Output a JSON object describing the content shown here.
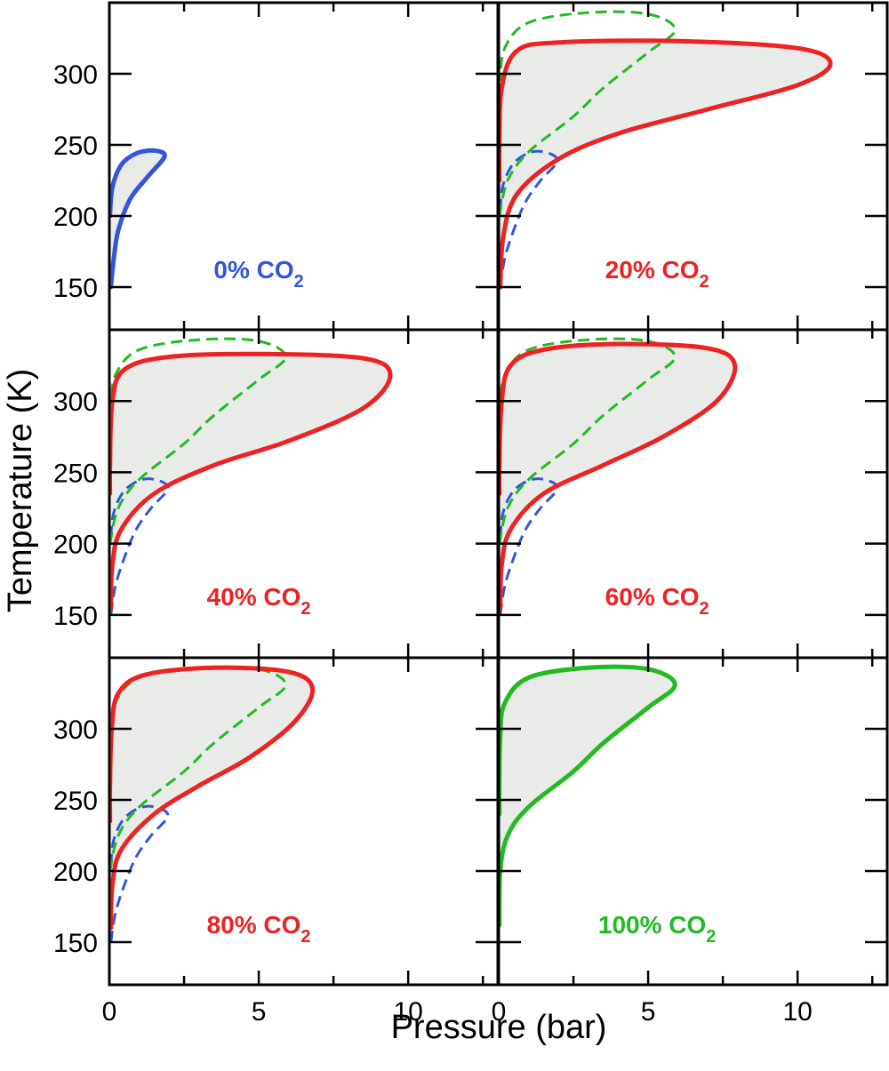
{
  "chart_data": {
    "type": "line",
    "xlabel": "Pressure (bar)",
    "ylabel": "Temperature (K)",
    "xlim": [
      0,
      13
    ],
    "ylim": [
      120,
      350
    ],
    "x_tick_labels": [
      "0",
      "5",
      "10"
    ],
    "y_tick_labels": [
      "150",
      "200",
      "250",
      "300"
    ],
    "grid": false,
    "colors": {
      "0": "#3355dd",
      "20_80": "#ee2222",
      "100": "#22bb22",
      "fill": "#e8ebe8"
    },
    "panels": [
      {
        "label_main": "0% CO",
        "label_sub": "2",
        "color": "#3355dd",
        "series": [
          {
            "co2": 0,
            "style": "solid",
            "filled": true,
            "points": [
              [
                0.05,
                150
              ],
              [
                0.15,
                170
              ],
              [
                0.3,
                190
              ],
              [
                0.7,
                212
              ],
              [
                1.3,
                228
              ],
              [
                1.85,
                242
              ],
              [
                1.5,
                246
              ],
              [
                0.9,
                244
              ],
              [
                0.4,
                236
              ],
              [
                0.1,
                220
              ],
              [
                0.02,
                200
              ]
            ]
          }
        ]
      },
      {
        "label_main": "20% CO",
        "label_sub": "2",
        "color": "#ee2222",
        "series": [
          {
            "co2": 20,
            "style": "solid",
            "filled": true,
            "points": [
              [
                0.05,
                150
              ],
              [
                0.15,
                185
              ],
              [
                0.6,
                215
              ],
              [
                2,
                240
              ],
              [
                4,
                258
              ],
              [
                7,
                275
              ],
              [
                10,
                292
              ],
              [
                11.1,
                307
              ],
              [
                10,
                318
              ],
              [
                6,
                323
              ],
              [
                2,
                322
              ],
              [
                0.6,
                316
              ],
              [
                0.1,
                290
              ],
              [
                0.02,
                250
              ],
              [
                0.02,
                225
              ]
            ]
          },
          {
            "co2": 0,
            "style": "dashed",
            "filled": false,
            "points": [
              [
                0.05,
                150
              ],
              [
                0.2,
                170
              ],
              [
                0.5,
                190
              ],
              [
                0.9,
                210
              ],
              [
                1.4,
                225
              ],
              [
                1.95,
                238
              ],
              [
                1.7,
                244
              ],
              [
                1.1,
                245
              ],
              [
                0.5,
                237
              ],
              [
                0.15,
                222
              ],
              [
                0.05,
                205
              ]
            ]
          },
          {
            "co2": 100,
            "style": "dashed",
            "filled": false,
            "points": [
              [
                0.02,
                200
              ],
              [
                0.3,
                225
              ],
              [
                1,
                245
              ],
              [
                2.5,
                270
              ],
              [
                3.5,
                290
              ],
              [
                5,
                315
              ],
              [
                5.9,
                331
              ],
              [
                5,
                342
              ],
              [
                3,
                343
              ],
              [
                1,
                336
              ],
              [
                0.2,
                318
              ],
              [
                0.05,
                295
              ]
            ]
          }
        ]
      },
      {
        "label_main": "40% CO",
        "label_sub": "2",
        "color": "#ee2222",
        "series": [
          {
            "co2": 40,
            "style": "solid",
            "filled": true,
            "points": [
              [
                0.05,
                155
              ],
              [
                0.1,
                185
              ],
              [
                0.4,
                210
              ],
              [
                1.5,
                235
              ],
              [
                3.5,
                255
              ],
              [
                6,
                272
              ],
              [
                8.5,
                295
              ],
              [
                9.4,
                318
              ],
              [
                8.5,
                330
              ],
              [
                5,
                333
              ],
              [
                2,
                331
              ],
              [
                0.5,
                322
              ],
              [
                0.1,
                300
              ],
              [
                0.02,
                255
              ],
              [
                0.02,
                235
              ]
            ]
          },
          {
            "co2": 0,
            "style": "dashed",
            "filled": false,
            "points": [
              [
                0.05,
                150
              ],
              [
                0.2,
                170
              ],
              [
                0.5,
                190
              ],
              [
                0.9,
                210
              ],
              [
                1.4,
                225
              ],
              [
                1.95,
                238
              ],
              [
                1.7,
                244
              ],
              [
                1.1,
                245
              ],
              [
                0.5,
                237
              ],
              [
                0.15,
                222
              ],
              [
                0.05,
                205
              ]
            ]
          },
          {
            "co2": 100,
            "style": "dashed",
            "filled": false,
            "points": [
              [
                0.02,
                200
              ],
              [
                0.3,
                225
              ],
              [
                1,
                245
              ],
              [
                2.5,
                270
              ],
              [
                3.5,
                290
              ],
              [
                5,
                315
              ],
              [
                5.9,
                331
              ],
              [
                5,
                342
              ],
              [
                3,
                343
              ],
              [
                1,
                336
              ],
              [
                0.2,
                318
              ],
              [
                0.05,
                295
              ]
            ]
          }
        ]
      },
      {
        "label_main": "60% CO",
        "label_sub": "2",
        "color": "#ee2222",
        "series": [
          {
            "co2": 60,
            "style": "solid",
            "filled": true,
            "points": [
              [
                0.05,
                155
              ],
              [
                0.1,
                185
              ],
              [
                0.4,
                210
              ],
              [
                1.5,
                235
              ],
              [
                3.5,
                255
              ],
              [
                5.5,
                275
              ],
              [
                7.3,
                300
              ],
              [
                7.9,
                325
              ],
              [
                7,
                337
              ],
              [
                4,
                340
              ],
              [
                1.5,
                336
              ],
              [
                0.4,
                325
              ],
              [
                0.1,
                300
              ],
              [
                0.02,
                255
              ],
              [
                0.02,
                235
              ]
            ]
          },
          {
            "co2": 0,
            "style": "dashed",
            "filled": false,
            "points": [
              [
                0.05,
                150
              ],
              [
                0.2,
                170
              ],
              [
                0.5,
                190
              ],
              [
                0.9,
                210
              ],
              [
                1.4,
                225
              ],
              [
                1.95,
                238
              ],
              [
                1.7,
                244
              ],
              [
                1.1,
                245
              ],
              [
                0.5,
                237
              ],
              [
                0.15,
                222
              ],
              [
                0.05,
                205
              ]
            ]
          },
          {
            "co2": 100,
            "style": "dashed",
            "filled": false,
            "points": [
              [
                0.02,
                200
              ],
              [
                0.3,
                225
              ],
              [
                1,
                245
              ],
              [
                2.5,
                270
              ],
              [
                3.5,
                290
              ],
              [
                5,
                315
              ],
              [
                5.9,
                331
              ],
              [
                5,
                342
              ],
              [
                3,
                343
              ],
              [
                1,
                336
              ],
              [
                0.2,
                318
              ],
              [
                0.05,
                295
              ]
            ]
          }
        ]
      },
      {
        "label_main": "80% CO",
        "label_sub": "2",
        "color": "#ee2222",
        "series": [
          {
            "co2": 80,
            "style": "solid",
            "filled": true,
            "points": [
              [
                0.05,
                160
              ],
              [
                0.1,
                190
              ],
              [
                0.4,
                215
              ],
              [
                1.5,
                240
              ],
              [
                3,
                260
              ],
              [
                4.7,
                280
              ],
              [
                6.2,
                305
              ],
              [
                6.8,
                328
              ],
              [
                6,
                340
              ],
              [
                3.5,
                343
              ],
              [
                1.2,
                338
              ],
              [
                0.3,
                325
              ],
              [
                0.08,
                300
              ],
              [
                0.02,
                260
              ],
              [
                0.02,
                235
              ]
            ]
          },
          {
            "co2": 0,
            "style": "dashed",
            "filled": false,
            "points": [
              [
                0.05,
                150
              ],
              [
                0.2,
                170
              ],
              [
                0.5,
                190
              ],
              [
                0.9,
                210
              ],
              [
                1.4,
                225
              ],
              [
                1.95,
                238
              ],
              [
                1.7,
                244
              ],
              [
                1.1,
                245
              ],
              [
                0.5,
                237
              ],
              [
                0.15,
                222
              ],
              [
                0.05,
                205
              ]
            ]
          },
          {
            "co2": 100,
            "style": "dashed",
            "filled": false,
            "points": [
              [
                0.02,
                200
              ],
              [
                0.3,
                225
              ],
              [
                1,
                245
              ],
              [
                2.5,
                270
              ],
              [
                3.5,
                290
              ],
              [
                5,
                315
              ],
              [
                5.9,
                331
              ],
              [
                5,
                342
              ],
              [
                3,
                343
              ],
              [
                1,
                336
              ],
              [
                0.2,
                318
              ],
              [
                0.05,
                295
              ]
            ]
          }
        ]
      },
      {
        "label_main": "100% CO",
        "label_sub": "2",
        "color": "#22bb22",
        "series": [
          {
            "co2": 100,
            "style": "solid",
            "filled": true,
            "points": [
              [
                0.02,
                162
              ],
              [
                0.05,
                200
              ],
              [
                0.3,
                225
              ],
              [
                1,
                245
              ],
              [
                2.5,
                270
              ],
              [
                3.5,
                290
              ],
              [
                5,
                315
              ],
              [
                5.9,
                331
              ],
              [
                5,
                342
              ],
              [
                3,
                343
              ],
              [
                1,
                336
              ],
              [
                0.2,
                318
              ],
              [
                0.05,
                295
              ],
              [
                0.02,
                265
              ],
              [
                0.02,
                240
              ]
            ]
          }
        ]
      }
    ]
  }
}
